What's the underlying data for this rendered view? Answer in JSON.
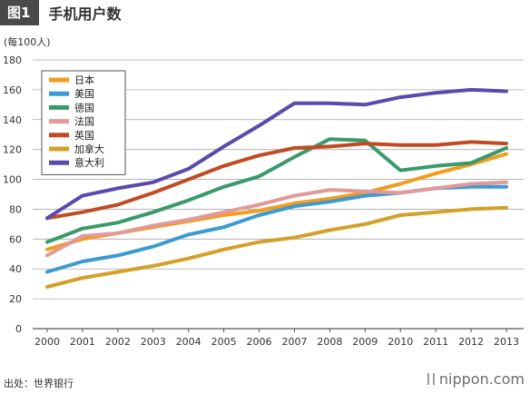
{
  "header": {
    "tag": "图1",
    "title": "手机用户数"
  },
  "footer": {
    "source": "出处：世界银行",
    "brand": "nippon.com"
  },
  "colors": {
    "grid": "#a9a9a9",
    "axis": "#555555",
    "tick_text": "#333333",
    "legend_border": "#555555"
  },
  "chart_data": {
    "type": "line",
    "title": "手机用户数",
    "ylabel": "(每100人)",
    "xlabel": "",
    "x": [
      "2000",
      "2001",
      "2002",
      "2003",
      "2004",
      "2005",
      "2006",
      "2007",
      "2008",
      "2009",
      "2010",
      "2011",
      "2012",
      "2013"
    ],
    "ylim": [
      0,
      180
    ],
    "yticks": [
      0,
      20,
      40,
      60,
      80,
      100,
      120,
      140,
      160,
      180
    ],
    "grid": true,
    "legend_position": "top-left",
    "series": [
      {
        "name": "日本",
        "color": "#f39c1d",
        "values": [
          53,
          60,
          64,
          68,
          72,
          76,
          79,
          84,
          87,
          91,
          97,
          104,
          110,
          117
        ]
      },
      {
        "name": "美国",
        "color": "#3b9bd1",
        "values": [
          38,
          45,
          49,
          55,
          63,
          68,
          76,
          82,
          85,
          89,
          91,
          94,
          95,
          95
        ]
      },
      {
        "name": "德国",
        "color": "#3a9a6a",
        "values": [
          58,
          67,
          71,
          78,
          86,
          95,
          102,
          115,
          127,
          126,
          106,
          109,
          111,
          121
        ]
      },
      {
        "name": "法国",
        "color": "#e09a9a",
        "values": [
          49,
          62,
          64,
          69,
          73,
          78,
          83,
          89,
          93,
          92,
          91,
          94,
          97,
          98
        ]
      },
      {
        "name": "英国",
        "color": "#c24a23",
        "values": [
          74,
          78,
          83,
          91,
          100,
          109,
          116,
          121,
          122,
          124,
          123,
          123,
          125,
          124
        ]
      },
      {
        "name": "加拿大",
        "color": "#d4a02a",
        "values": [
          28,
          34,
          38,
          42,
          47,
          53,
          58,
          61,
          66,
          70,
          76,
          78,
          80,
          81
        ]
      },
      {
        "name": "意大利",
        "color": "#5a4aad",
        "values": [
          74,
          89,
          94,
          98,
          107,
          122,
          136,
          151,
          151,
          150,
          155,
          158,
          160,
          159
        ]
      }
    ]
  }
}
